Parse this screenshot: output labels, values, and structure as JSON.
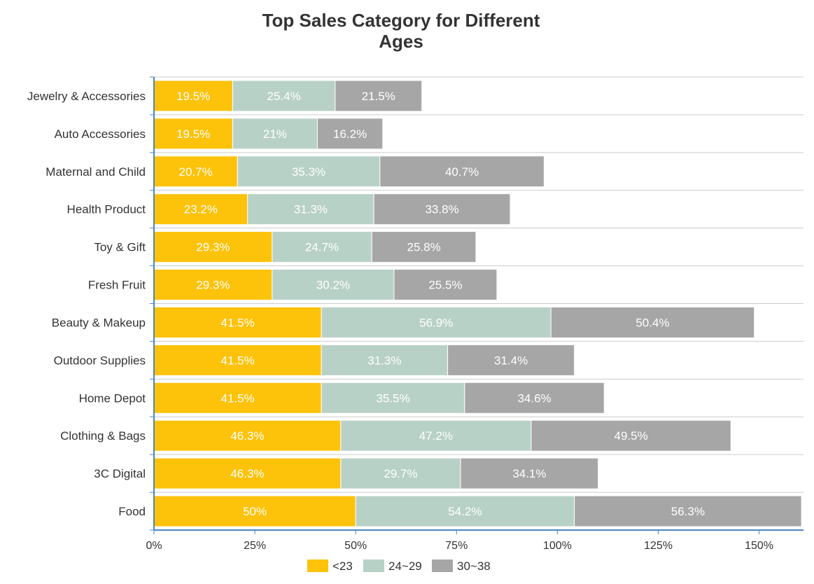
{
  "chart_data": {
    "type": "bar",
    "orientation": "horizontal",
    "stacked": true,
    "title_lines": [
      "Top Sales Category for Different",
      "Ages"
    ],
    "categories": [
      "Jewelry & Accessories",
      "Auto Accessories",
      "Maternal and Child",
      "Health Product",
      "Toy & Gift",
      "Fresh Fruit",
      "Beauty & Makeup",
      "Outdoor Supplies",
      "Home Depot",
      "Clothing & Bags",
      "3C Digital",
      "Food"
    ],
    "series": [
      {
        "name": "<23",
        "color": "#FDC20A",
        "values": [
          19.5,
          19.5,
          20.7,
          23.2,
          29.3,
          29.3,
          41.5,
          41.5,
          41.5,
          46.3,
          46.3,
          50
        ],
        "labels": [
          "19.5%",
          "19.5%",
          "20.7%",
          "23.2%",
          "29.3%",
          "29.3%",
          "41.5%",
          "41.5%",
          "41.5%",
          "46.3%",
          "46.3%",
          "50%"
        ]
      },
      {
        "name": "24~29",
        "color": "#B8D1C7",
        "values": [
          25.4,
          21,
          35.3,
          31.3,
          24.7,
          30.2,
          56.9,
          31.3,
          35.5,
          47.2,
          29.7,
          54.2
        ],
        "labels": [
          "25.4%",
          "21%",
          "35.3%",
          "31.3%",
          "24.7%",
          "30.2%",
          "56.9%",
          "31.3%",
          "35.5%",
          "47.2%",
          "29.7%",
          "54.2%"
        ]
      },
      {
        "name": "30~38",
        "color": "#A6A6A6",
        "values": [
          21.5,
          16.2,
          40.7,
          33.8,
          25.8,
          25.5,
          50.4,
          31.4,
          34.6,
          49.5,
          34.1,
          56.3
        ],
        "labels": [
          "21.5%",
          "16.2%",
          "40.7%",
          "33.8%",
          "25.8%",
          "25.5%",
          "50.4%",
          "31.4%",
          "34.6%",
          "49.5%",
          "34.1%",
          "56.3%"
        ]
      }
    ],
    "x_ticks": [
      "0%",
      "25%",
      "50%",
      "75%",
      "100%",
      "125%",
      "150%"
    ],
    "x_tick_values": [
      0,
      25,
      50,
      75,
      100,
      125,
      150
    ],
    "xlim": [
      0,
      161
    ],
    "grid": true,
    "legend_position": "bottom",
    "axis_color": "#4A86C5",
    "grid_color": "#CCCCCC"
  }
}
